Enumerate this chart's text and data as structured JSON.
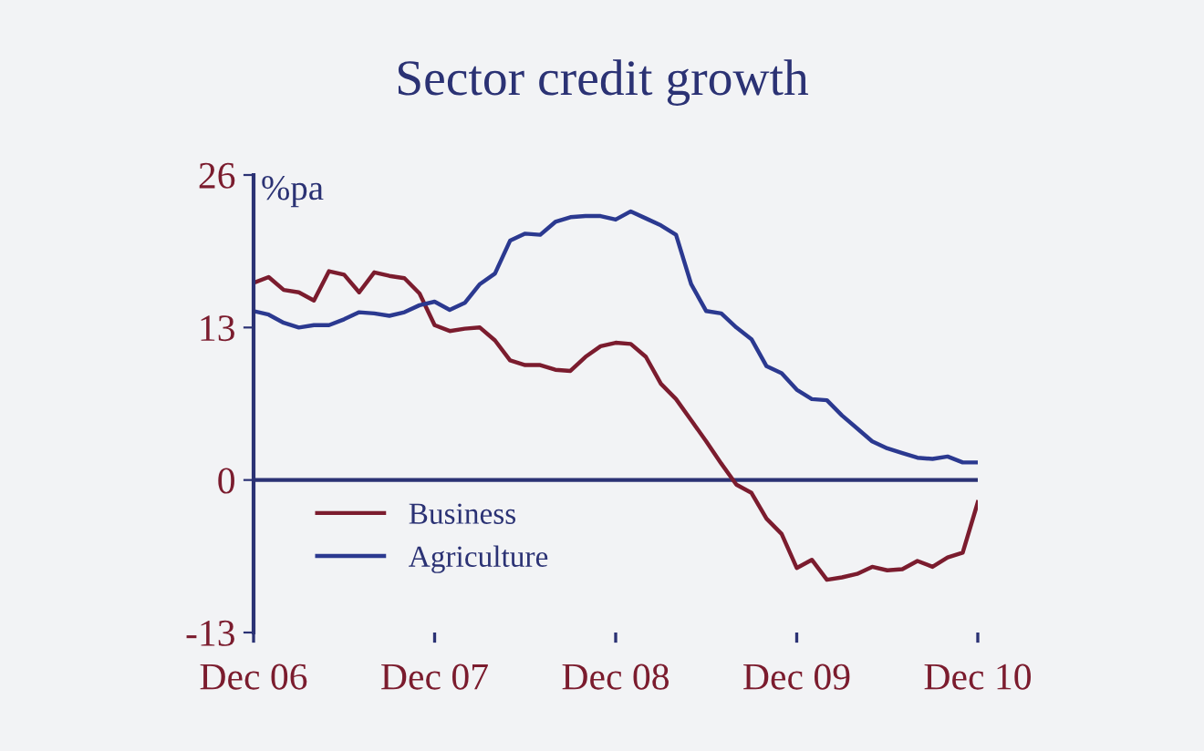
{
  "chart_data": {
    "type": "line",
    "title": "Sector credit growth",
    "ylabel": "%pa",
    "x": [
      "2006-12",
      "2007-01",
      "2007-02",
      "2007-03",
      "2007-04",
      "2007-05",
      "2007-06",
      "2007-07",
      "2007-08",
      "2007-09",
      "2007-10",
      "2007-11",
      "2007-12",
      "2008-01",
      "2008-02",
      "2008-03",
      "2008-04",
      "2008-05",
      "2008-06",
      "2008-07",
      "2008-08",
      "2008-09",
      "2008-10",
      "2008-11",
      "2008-12",
      "2009-01",
      "2009-02",
      "2009-03",
      "2009-04",
      "2009-05",
      "2009-06",
      "2009-07",
      "2009-08",
      "2009-09",
      "2009-10",
      "2009-11",
      "2009-12",
      "2010-01",
      "2010-02",
      "2010-03",
      "2010-04",
      "2010-05",
      "2010-06",
      "2010-07",
      "2010-08",
      "2010-09",
      "2010-10",
      "2010-11",
      "2010-12"
    ],
    "series": [
      {
        "name": "Business",
        "color": "#7b1c2e",
        "values": [
          16.8,
          17.3,
          16.2,
          16.0,
          15.3,
          17.8,
          17.5,
          16.0,
          17.7,
          17.4,
          17.2,
          15.9,
          13.2,
          12.7,
          12.9,
          13.0,
          11.9,
          10.2,
          9.8,
          9.8,
          9.4,
          9.3,
          10.5,
          11.4,
          11.7,
          11.6,
          10.5,
          8.2,
          6.9,
          5.1,
          3.3,
          1.4,
          -0.4,
          -1.1,
          -3.3,
          -4.6,
          -7.5,
          -6.8,
          -8.5,
          -8.3,
          -8.0,
          -7.4,
          -7.7,
          -7.6,
          -6.9,
          -7.4,
          -6.6,
          -6.2,
          -1.9
        ]
      },
      {
        "name": "Agriculture",
        "color": "#2b3990",
        "values": [
          14.4,
          14.1,
          13.4,
          13.0,
          13.2,
          13.2,
          13.7,
          14.3,
          14.2,
          14.0,
          14.3,
          14.9,
          15.2,
          14.5,
          15.1,
          16.7,
          17.6,
          20.4,
          21.0,
          20.9,
          22.0,
          22.4,
          22.5,
          22.5,
          22.2,
          22.9,
          22.3,
          21.7,
          20.9,
          16.7,
          14.4,
          14.2,
          13.0,
          12.0,
          9.7,
          9.1,
          7.7,
          6.9,
          6.8,
          5.5,
          4.4,
          3.3,
          2.7,
          2.3,
          1.9,
          1.8,
          2.0,
          1.5,
          1.5
        ]
      }
    ],
    "xlim": [
      "2006-12",
      "2010-12"
    ],
    "xticks": [
      {
        "value": "2006-12",
        "label": "Dec 06"
      },
      {
        "value": "2007-12",
        "label": "Dec 07"
      },
      {
        "value": "2008-12",
        "label": "Dec 08"
      },
      {
        "value": "2009-12",
        "label": "Dec 09"
      },
      {
        "value": "2010-12",
        "label": "Dec 10"
      }
    ],
    "ylim": [
      -13,
      26
    ],
    "yticks": [
      -13,
      0,
      13,
      26
    ],
    "ref_lines": [
      {
        "axis": "y",
        "value": 0,
        "color": "#2b3274"
      }
    ],
    "legend": "bottom left",
    "grid": false,
    "marker": "none",
    "line_style": "solid"
  }
}
